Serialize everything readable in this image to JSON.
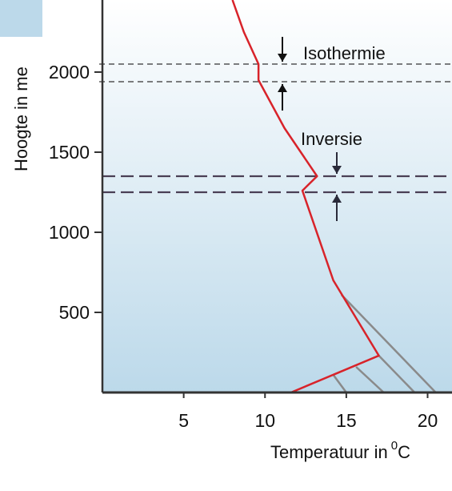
{
  "chart_data": {
    "type": "line",
    "title": "",
    "xlabel": "Temperatuur in",
    "xlabel_unit": "0",
    "xlabel_suffix": "C",
    "ylabel": "Hoogte in me",
    "xlim": [
      0,
      21.5
    ],
    "ylim": [
      0,
      2450
    ],
    "x_ticks": [
      5,
      10,
      15,
      20
    ],
    "x_tick_labels": [
      "5",
      "10",
      "15",
      "20"
    ],
    "y_ticks": [
      500,
      1000,
      1500,
      2000
    ],
    "y_tick_labels": [
      "500",
      "1000",
      "1500",
      "2000"
    ],
    "grid": false,
    "series": [
      {
        "color": "#d8232a",
        "points": [
          {
            "x": 8.0,
            "y": 2450
          },
          {
            "x": 8.7,
            "y": 2250
          },
          {
            "x": 9.6,
            "y": 2050
          },
          {
            "x": 9.6,
            "y": 1950
          },
          {
            "x": 11.2,
            "y": 1650
          },
          {
            "x": 13.2,
            "y": 1350
          },
          {
            "x": 12.3,
            "y": 1260
          },
          {
            "x": 14.2,
            "y": 700
          },
          {
            "x": 17.0,
            "y": 230
          },
          {
            "x": 11.6,
            "y": 0
          }
        ]
      }
    ],
    "gray_lines": [
      {
        "color": "#8a8a8a",
        "points": [
          {
            "x": 14.7,
            "y": 610
          },
          {
            "x": 20.5,
            "y": 0
          }
        ]
      },
      {
        "color": "#8a8a8a",
        "points": [
          {
            "x": 17.0,
            "y": 230
          },
          {
            "x": 19.2,
            "y": 0
          }
        ]
      },
      {
        "color": "#8a8a8a",
        "points": [
          {
            "x": 15.6,
            "y": 160
          },
          {
            "x": 17.3,
            "y": 0
          }
        ]
      },
      {
        "color": "#8a8a8a",
        "points": [
          {
            "x": 14.2,
            "y": 110
          },
          {
            "x": 15.0,
            "y": 0
          }
        ]
      }
    ],
    "annotation_lines": [
      {
        "color": "#d8232a",
        "points": [
          {
            "x": 14.2,
            "y": 110
          },
          {
            "x": 17.0,
            "y": 230
          }
        ]
      }
    ],
    "layers": [
      {
        "name": "Isothermie",
        "y_top": 2050,
        "y_bottom": 1940,
        "color": "#333333"
      },
      {
        "name": "Inversie",
        "y_top": 1350,
        "y_bottom": 1250,
        "color": "#4a3f55"
      }
    ],
    "colors": {
      "background_top": "#ffffff",
      "background_bottom": "#bcd9ea",
      "axis": "#333333",
      "profile": "#d8232a",
      "gray": "#8a8a8a"
    }
  }
}
